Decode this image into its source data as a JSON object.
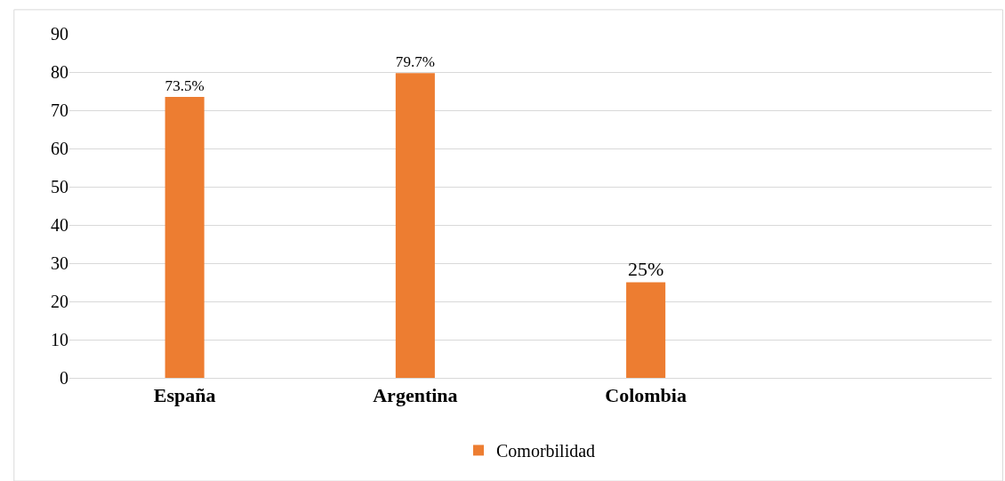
{
  "chart_data": {
    "type": "bar",
    "categories": [
      "España",
      "Argentina",
      "Colombia",
      null
    ],
    "series": [
      {
        "name": "Comorbilidad",
        "color": "#ed7d31",
        "values": [
          73.5,
          79.7,
          25,
          null
        ],
        "value_labels": [
          "73.5%",
          "79.7%",
          "25%",
          null
        ]
      }
    ],
    "ylim": [
      0,
      90
    ],
    "yticks": [
      0,
      10,
      20,
      30,
      40,
      50,
      60,
      70,
      80,
      90
    ],
    "grid": "y",
    "legend": "bottom"
  }
}
